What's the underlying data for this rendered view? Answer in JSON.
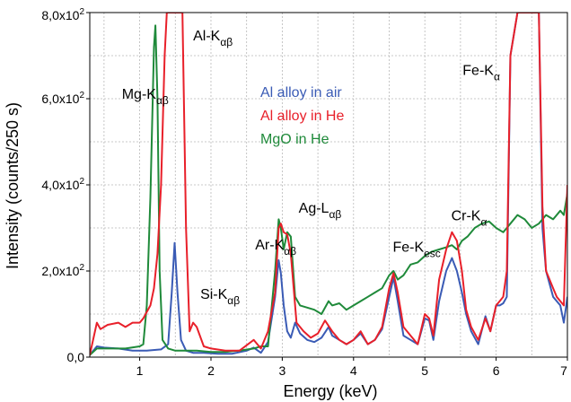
{
  "chart_data": {
    "type": "line",
    "xlabel": "Energy (keV)",
    "ylabel": "Intensity (counts/250 s)",
    "xlim": [
      0.3,
      7
    ],
    "ylim": [
      0,
      800
    ],
    "grid": true,
    "legend_position": "top-center",
    "x_ticks": [
      {
        "value": 1,
        "label": "1"
      },
      {
        "value": 2,
        "label": "2"
      },
      {
        "value": 3,
        "label": "3"
      },
      {
        "value": 4,
        "label": "4"
      },
      {
        "value": 5,
        "label": "5"
      },
      {
        "value": 6,
        "label": "6"
      },
      {
        "value": 7,
        "label": "7"
      }
    ],
    "y_ticks": [
      {
        "value": 0,
        "label": "0,0",
        "exp": ""
      },
      {
        "value": 200,
        "label": "2,0x10",
        "exp": "2"
      },
      {
        "value": 400,
        "label": "4,0x10",
        "exp": "2"
      },
      {
        "value": 600,
        "label": "6,0x10",
        "exp": "2"
      },
      {
        "value": 800,
        "label": "8,0x10",
        "exp": "2"
      }
    ],
    "series": [
      {
        "name": "Al alloy in air",
        "color": "#3a5bb5",
        "x": [
          0.3,
          0.4,
          0.5,
          0.7,
          0.9,
          1.1,
          1.3,
          1.4,
          1.45,
          1.49,
          1.53,
          1.58,
          1.65,
          1.75,
          1.9,
          2.1,
          2.3,
          2.5,
          2.6,
          2.7,
          2.8,
          2.9,
          2.95,
          2.98,
          3.02,
          3.07,
          3.12,
          3.18,
          3.25,
          3.35,
          3.45,
          3.55,
          3.65,
          3.7,
          3.8,
          3.9,
          4.0,
          4.1,
          4.2,
          4.3,
          4.4,
          4.5,
          4.56,
          4.62,
          4.7,
          4.8,
          4.9,
          5.0,
          5.06,
          5.12,
          5.2,
          5.3,
          5.38,
          5.45,
          5.52,
          5.58,
          5.65,
          5.75,
          5.85,
          5.92,
          6.0,
          6.05,
          6.1,
          6.15,
          6.2,
          6.3,
          6.4,
          6.5,
          6.6,
          6.65,
          6.7,
          6.8,
          6.85,
          6.9,
          6.95,
          7.0
        ],
        "y": [
          5,
          25,
          22,
          20,
          15,
          15,
          18,
          30,
          150,
          265,
          150,
          40,
          15,
          10,
          10,
          8,
          8,
          15,
          22,
          10,
          35,
          140,
          225,
          195,
          120,
          60,
          45,
          80,
          55,
          40,
          35,
          45,
          70,
          50,
          40,
          30,
          40,
          55,
          30,
          40,
          65,
          140,
          185,
          130,
          50,
          40,
          30,
          90,
          85,
          40,
          130,
          200,
          230,
          200,
          150,
          100,
          60,
          30,
          95,
          60,
          120,
          120,
          125,
          140,
          700,
          800,
          800,
          800,
          800,
          300,
          200,
          140,
          130,
          120,
          80,
          140
        ]
      },
      {
        "name": "Al alloy in He",
        "color": "#e8202a",
        "x": [
          0.3,
          0.4,
          0.45,
          0.55,
          0.7,
          0.8,
          0.9,
          1.0,
          1.05,
          1.1,
          1.15,
          1.2,
          1.25,
          1.3,
          1.35,
          1.38,
          1.6,
          1.65,
          1.7,
          1.75,
          1.8,
          1.9,
          2.0,
          2.2,
          2.4,
          2.6,
          2.7,
          2.8,
          2.9,
          2.95,
          2.98,
          3.02,
          3.07,
          3.12,
          3.2,
          3.3,
          3.4,
          3.5,
          3.6,
          3.7,
          3.8,
          3.9,
          4.0,
          4.1,
          4.2,
          4.3,
          4.4,
          4.5,
          4.56,
          4.62,
          4.7,
          4.8,
          4.9,
          5.0,
          5.06,
          5.12,
          5.2,
          5.3,
          5.38,
          5.45,
          5.52,
          5.58,
          5.65,
          5.75,
          5.85,
          5.92,
          6.0,
          6.05,
          6.1,
          6.15,
          6.2,
          6.3,
          6.4,
          6.5,
          6.6,
          6.65,
          6.7,
          6.8,
          6.85,
          6.9,
          6.95,
          7.0
        ],
        "y": [
          5,
          80,
          65,
          75,
          80,
          70,
          80,
          80,
          90,
          105,
          120,
          160,
          240,
          400,
          700,
          800,
          800,
          300,
          60,
          80,
          70,
          25,
          20,
          15,
          15,
          40,
          20,
          60,
          150,
          300,
          310,
          290,
          285,
          240,
          80,
          60,
          45,
          55,
          85,
          60,
          40,
          30,
          40,
          60,
          30,
          40,
          70,
          160,
          195,
          150,
          70,
          50,
          30,
          100,
          90,
          50,
          180,
          250,
          290,
          270,
          200,
          110,
          70,
          40,
          90,
          60,
          120,
          130,
          140,
          200,
          700,
          800,
          800,
          800,
          800,
          350,
          200,
          160,
          140,
          130,
          120,
          400
        ]
      },
      {
        "name": "MgO in He",
        "color": "#1f8a3a",
        "x": [
          0.3,
          0.4,
          0.6,
          0.8,
          1.0,
          1.05,
          1.1,
          1.15,
          1.2,
          1.22,
          1.25,
          1.28,
          1.32,
          1.4,
          1.5,
          1.6,
          1.8,
          2.0,
          2.2,
          2.4,
          2.6,
          2.7,
          2.8,
          2.9,
          2.95,
          2.98,
          3.02,
          3.07,
          3.12,
          3.18,
          3.25,
          3.35,
          3.45,
          3.55,
          3.65,
          3.7,
          3.8,
          3.9,
          4.0,
          4.1,
          4.2,
          4.3,
          4.4,
          4.5,
          4.56,
          4.62,
          4.7,
          4.8,
          4.9,
          5.0,
          5.1,
          5.2,
          5.3,
          5.38,
          5.45,
          5.52,
          5.6,
          5.7,
          5.8,
          5.9,
          6.0,
          6.1,
          6.2,
          6.3,
          6.4,
          6.5,
          6.6,
          6.7,
          6.8,
          6.9,
          6.95,
          7.0
        ],
        "y": [
          5,
          20,
          20,
          20,
          25,
          30,
          120,
          370,
          720,
          770,
          600,
          200,
          40,
          20,
          15,
          15,
          15,
          12,
          12,
          15,
          20,
          25,
          25,
          200,
          320,
          300,
          250,
          290,
          280,
          140,
          120,
          115,
          110,
          100,
          130,
          120,
          125,
          110,
          120,
          130,
          140,
          150,
          160,
          190,
          200,
          180,
          190,
          215,
          220,
          235,
          245,
          250,
          255,
          260,
          250,
          270,
          280,
          300,
          310,
          315,
          300,
          290,
          310,
          330,
          320,
          300,
          310,
          330,
          320,
          340,
          330,
          380
        ]
      }
    ],
    "annotations": [
      {
        "text": "Mg-K",
        "sub": "αβ",
        "x": 0.75,
        "y": 600
      },
      {
        "text": "Al-K",
        "sub": "αβ",
        "x": 1.75,
        "y": 735
      },
      {
        "text": "Si-K",
        "sub": "αβ",
        "x": 1.85,
        "y": 135
      },
      {
        "text": "Ar-K",
        "sub": "αβ",
        "x": 2.62,
        "y": 250
      },
      {
        "text": "Ag-L",
        "sub": "αβ",
        "x": 3.23,
        "y": 335
      },
      {
        "text": "Fe-K",
        "sub": "esc",
        "x": 4.55,
        "y": 245
      },
      {
        "text": "Cr-K",
        "sub": "α",
        "x": 5.37,
        "y": 318
      },
      {
        "text": "Fe-K",
        "sub": "α",
        "x": 5.53,
        "y": 655
      }
    ]
  }
}
